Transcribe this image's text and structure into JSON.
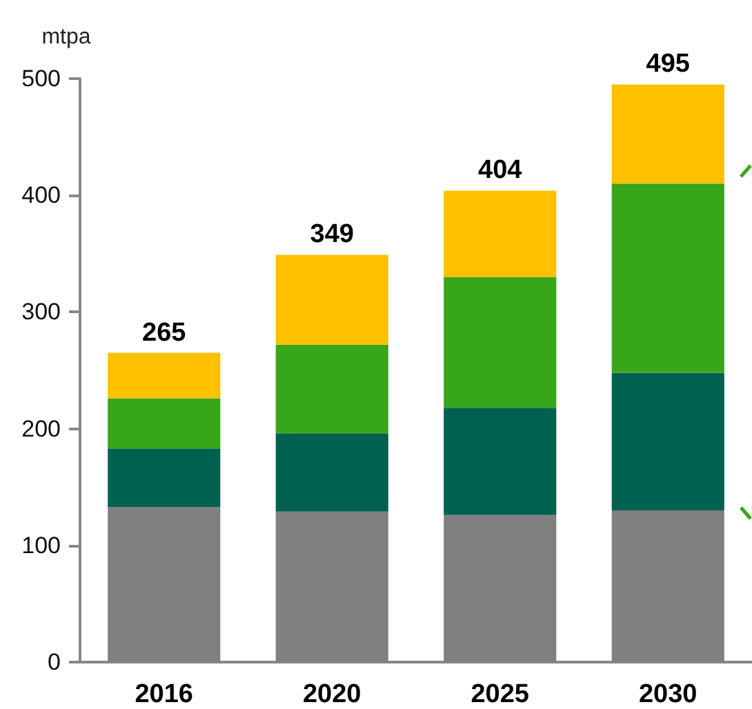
{
  "chart_data": {
    "type": "bar",
    "ylabel": "mtpa",
    "categories": [
      "2016",
      "2020",
      "2025",
      "2030"
    ],
    "series": [
      {
        "color": "#808080",
        "values": [
          133,
          129,
          126,
          130
        ]
      },
      {
        "color": "#006151",
        "values": [
          50,
          67,
          92,
          118
        ]
      },
      {
        "color": "#38a619",
        "values": [
          43,
          76,
          112,
          162
        ]
      },
      {
        "color": "#ffc000",
        "values": [
          39,
          77,
          74,
          85
        ]
      }
    ],
    "stacked": true,
    "totals": [
      "265",
      "349",
      "404",
      "495"
    ],
    "ylim": [
      0,
      500
    ],
    "yticks": [
      0,
      100,
      200,
      300,
      400,
      500
    ],
    "grid": false
  }
}
